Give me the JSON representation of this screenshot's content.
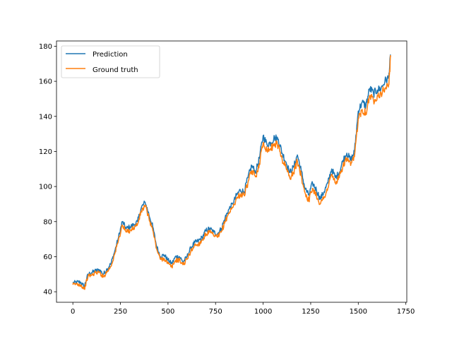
{
  "chart_data": {
    "type": "line",
    "title": "",
    "xlabel": "",
    "ylabel": "",
    "xlim": [
      -86,
      1755
    ],
    "ylim": [
      34,
      183
    ],
    "x_ticks": [
      0,
      250,
      500,
      750,
      1000,
      1250,
      1500,
      1750
    ],
    "y_ticks": [
      40,
      60,
      80,
      100,
      120,
      140,
      160,
      180
    ],
    "grid": false,
    "legend_position": "top-left",
    "series": [
      {
        "name": "Prediction",
        "color": "#1f77b4",
        "x": [
          0,
          20,
          40,
          60,
          80,
          100,
          120,
          140,
          160,
          180,
          200,
          220,
          240,
          260,
          280,
          300,
          320,
          340,
          360,
          380,
          400,
          420,
          440,
          460,
          480,
          500,
          520,
          540,
          560,
          580,
          600,
          620,
          640,
          660,
          680,
          700,
          720,
          740,
          760,
          780,
          800,
          820,
          840,
          860,
          880,
          900,
          920,
          940,
          960,
          980,
          1000,
          1020,
          1040,
          1060,
          1080,
          1100,
          1120,
          1140,
          1160,
          1180,
          1200,
          1220,
          1240,
          1260,
          1280,
          1300,
          1320,
          1340,
          1360,
          1380,
          1400,
          1420,
          1440,
          1460,
          1480,
          1500,
          1520,
          1540,
          1560,
          1580,
          1600,
          1620,
          1640,
          1660,
          1670
        ],
        "y": [
          45,
          45.5,
          45.5,
          43,
          50,
          51,
          52,
          52.5,
          50,
          53,
          56,
          63,
          71,
          80,
          76,
          77,
          78,
          80,
          88,
          91,
          84,
          77,
          66,
          60,
          61,
          58,
          56,
          60,
          60,
          57,
          60,
          65,
          68,
          69,
          71,
          75,
          76,
          74,
          73,
          76,
          82,
          87,
          90,
          95,
          98,
          97,
          105,
          112,
          108,
          116,
          129,
          124,
          125,
          128,
          127,
          119,
          114,
          108,
          111,
          118,
          109,
          99,
          95,
          102,
          98,
          93,
          97,
          102,
          110,
          105,
          108,
          115,
          119,
          115,
          120,
          143,
          148,
          146,
          156,
          153,
          155,
          156,
          160,
          162,
          175
        ]
      },
      {
        "name": "Ground truth",
        "color": "#ff7f0e",
        "x": [
          0,
          20,
          40,
          60,
          80,
          100,
          120,
          140,
          160,
          180,
          200,
          220,
          240,
          260,
          280,
          300,
          320,
          340,
          360,
          380,
          400,
          420,
          440,
          460,
          480,
          500,
          520,
          540,
          560,
          580,
          600,
          620,
          640,
          660,
          680,
          700,
          720,
          740,
          760,
          780,
          800,
          820,
          840,
          860,
          880,
          900,
          920,
          940,
          960,
          980,
          1000,
          1020,
          1040,
          1060,
          1080,
          1100,
          1120,
          1140,
          1160,
          1180,
          1200,
          1220,
          1240,
          1260,
          1280,
          1300,
          1320,
          1340,
          1360,
          1380,
          1400,
          1420,
          1440,
          1460,
          1480,
          1500,
          1520,
          1540,
          1560,
          1580,
          1600,
          1620,
          1640,
          1660,
          1670
        ],
        "y": [
          44,
          44.5,
          44,
          41.5,
          49,
          49.5,
          51,
          51,
          48.5,
          51.5,
          54.5,
          61.5,
          69.5,
          78,
          74,
          75,
          76.5,
          78.5,
          86,
          89,
          82,
          75,
          64.5,
          58.5,
          59,
          56,
          54,
          58,
          58,
          55.5,
          58.5,
          63,
          66.5,
          67,
          69.5,
          73,
          74,
          72,
          71,
          74,
          80,
          85,
          88,
          93,
          95.5,
          95,
          102,
          109,
          105.5,
          113,
          125,
          121,
          121.5,
          124.5,
          123.5,
          115.5,
          111,
          105,
          108,
          114.5,
          106,
          96.5,
          92,
          99,
          95,
          90,
          94,
          99,
          107,
          102,
          105,
          112,
          116,
          112,
          117,
          139,
          144,
          142,
          152,
          149,
          152,
          153,
          156,
          158,
          174
        ]
      }
    ]
  }
}
